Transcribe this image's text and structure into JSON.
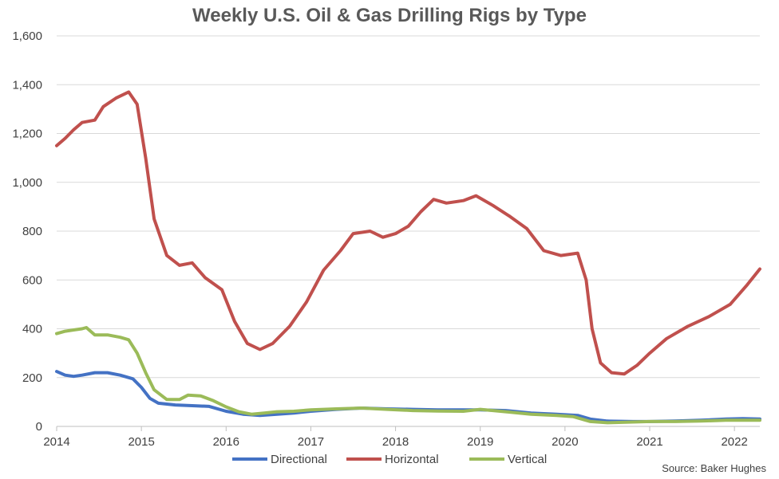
{
  "chart_data": {
    "type": "line",
    "title": "Weekly U.S. Oil & Gas Drilling Rigs by Type",
    "xlabel": "",
    "ylabel": "",
    "xlim": [
      2014.0,
      2022.3
    ],
    "ylim": [
      0,
      1600
    ],
    "yticks": [
      0,
      200,
      400,
      600,
      800,
      1000,
      1200,
      1400,
      1600
    ],
    "ytick_labels": [
      "0",
      "200",
      "400",
      "600",
      "800",
      "1,000",
      "1,200",
      "1,400",
      "1,600"
    ],
    "xticks": [
      2014,
      2015,
      2016,
      2017,
      2018,
      2019,
      2020,
      2021,
      2022
    ],
    "xtick_labels": [
      "2014",
      "2015",
      "2016",
      "2017",
      "2018",
      "2019",
      "2020",
      "2021",
      "2022"
    ],
    "grid": "horizontal",
    "legend_position": "bottom",
    "source": "Source: Baker Hughes",
    "series": [
      {
        "name": "Directional",
        "color": "#4472C4",
        "points": [
          [
            2014.0,
            225
          ],
          [
            2014.1,
            210
          ],
          [
            2014.2,
            205
          ],
          [
            2014.3,
            210
          ],
          [
            2014.45,
            220
          ],
          [
            2014.6,
            220
          ],
          [
            2014.75,
            210
          ],
          [
            2014.9,
            195
          ],
          [
            2015.0,
            160
          ],
          [
            2015.1,
            115
          ],
          [
            2015.2,
            95
          ],
          [
            2015.4,
            88
          ],
          [
            2015.6,
            85
          ],
          [
            2015.8,
            82
          ],
          [
            2016.0,
            62
          ],
          [
            2016.2,
            50
          ],
          [
            2016.4,
            45
          ],
          [
            2016.6,
            50
          ],
          [
            2016.8,
            55
          ],
          [
            2017.0,
            62
          ],
          [
            2017.3,
            70
          ],
          [
            2017.6,
            75
          ],
          [
            2017.9,
            72
          ],
          [
            2018.2,
            70
          ],
          [
            2018.5,
            68
          ],
          [
            2018.8,
            68
          ],
          [
            2019.0,
            68
          ],
          [
            2019.3,
            65
          ],
          [
            2019.6,
            55
          ],
          [
            2019.9,
            50
          ],
          [
            2020.15,
            45
          ],
          [
            2020.3,
            30
          ],
          [
            2020.5,
            22
          ],
          [
            2020.8,
            20
          ],
          [
            2021.0,
            20
          ],
          [
            2021.3,
            22
          ],
          [
            2021.6,
            25
          ],
          [
            2021.9,
            30
          ],
          [
            2022.1,
            32
          ],
          [
            2022.3,
            30
          ]
        ]
      },
      {
        "name": "Horizontal",
        "color": "#C0504D",
        "points": [
          [
            2014.0,
            1150
          ],
          [
            2014.1,
            1180
          ],
          [
            2014.2,
            1215
          ],
          [
            2014.3,
            1245
          ],
          [
            2014.45,
            1255
          ],
          [
            2014.55,
            1310
          ],
          [
            2014.7,
            1345
          ],
          [
            2014.85,
            1370
          ],
          [
            2014.95,
            1320
          ],
          [
            2015.05,
            1100
          ],
          [
            2015.15,
            850
          ],
          [
            2015.3,
            700
          ],
          [
            2015.45,
            660
          ],
          [
            2015.6,
            670
          ],
          [
            2015.75,
            610
          ],
          [
            2015.95,
            560
          ],
          [
            2016.1,
            430
          ],
          [
            2016.25,
            340
          ],
          [
            2016.4,
            315
          ],
          [
            2016.55,
            340
          ],
          [
            2016.75,
            410
          ],
          [
            2016.95,
            510
          ],
          [
            2017.15,
            640
          ],
          [
            2017.35,
            720
          ],
          [
            2017.5,
            790
          ],
          [
            2017.7,
            800
          ],
          [
            2017.85,
            775
          ],
          [
            2018.0,
            790
          ],
          [
            2018.15,
            820
          ],
          [
            2018.3,
            880
          ],
          [
            2018.45,
            930
          ],
          [
            2018.6,
            915
          ],
          [
            2018.8,
            925
          ],
          [
            2018.95,
            945
          ],
          [
            2019.15,
            905
          ],
          [
            2019.35,
            860
          ],
          [
            2019.55,
            810
          ],
          [
            2019.75,
            720
          ],
          [
            2019.95,
            700
          ],
          [
            2020.15,
            710
          ],
          [
            2020.25,
            600
          ],
          [
            2020.32,
            400
          ],
          [
            2020.42,
            260
          ],
          [
            2020.55,
            220
          ],
          [
            2020.7,
            215
          ],
          [
            2020.85,
            250
          ],
          [
            2021.0,
            300
          ],
          [
            2021.2,
            360
          ],
          [
            2021.45,
            410
          ],
          [
            2021.7,
            450
          ],
          [
            2021.95,
            500
          ],
          [
            2022.15,
            580
          ],
          [
            2022.3,
            645
          ]
        ]
      },
      {
        "name": "Vertical",
        "color": "#9BBB59",
        "points": [
          [
            2014.0,
            380
          ],
          [
            2014.1,
            390
          ],
          [
            2014.2,
            395
          ],
          [
            2014.3,
            400
          ],
          [
            2014.35,
            405
          ],
          [
            2014.45,
            375
          ],
          [
            2014.6,
            375
          ],
          [
            2014.75,
            365
          ],
          [
            2014.85,
            355
          ],
          [
            2014.95,
            300
          ],
          [
            2015.05,
            220
          ],
          [
            2015.15,
            150
          ],
          [
            2015.3,
            110
          ],
          [
            2015.45,
            110
          ],
          [
            2015.55,
            128
          ],
          [
            2015.7,
            125
          ],
          [
            2015.85,
            105
          ],
          [
            2016.0,
            80
          ],
          [
            2016.15,
            60
          ],
          [
            2016.3,
            50
          ],
          [
            2016.45,
            55
          ],
          [
            2016.6,
            60
          ],
          [
            2016.8,
            62
          ],
          [
            2017.0,
            68
          ],
          [
            2017.3,
            72
          ],
          [
            2017.6,
            75
          ],
          [
            2017.9,
            70
          ],
          [
            2018.2,
            65
          ],
          [
            2018.5,
            63
          ],
          [
            2018.8,
            62
          ],
          [
            2019.0,
            70
          ],
          [
            2019.3,
            60
          ],
          [
            2019.6,
            50
          ],
          [
            2019.9,
            45
          ],
          [
            2020.1,
            40
          ],
          [
            2020.3,
            20
          ],
          [
            2020.5,
            15
          ],
          [
            2020.8,
            18
          ],
          [
            2021.0,
            20
          ],
          [
            2021.3,
            20
          ],
          [
            2021.6,
            22
          ],
          [
            2021.9,
            25
          ],
          [
            2022.1,
            25
          ],
          [
            2022.3,
            25
          ]
        ]
      }
    ]
  }
}
